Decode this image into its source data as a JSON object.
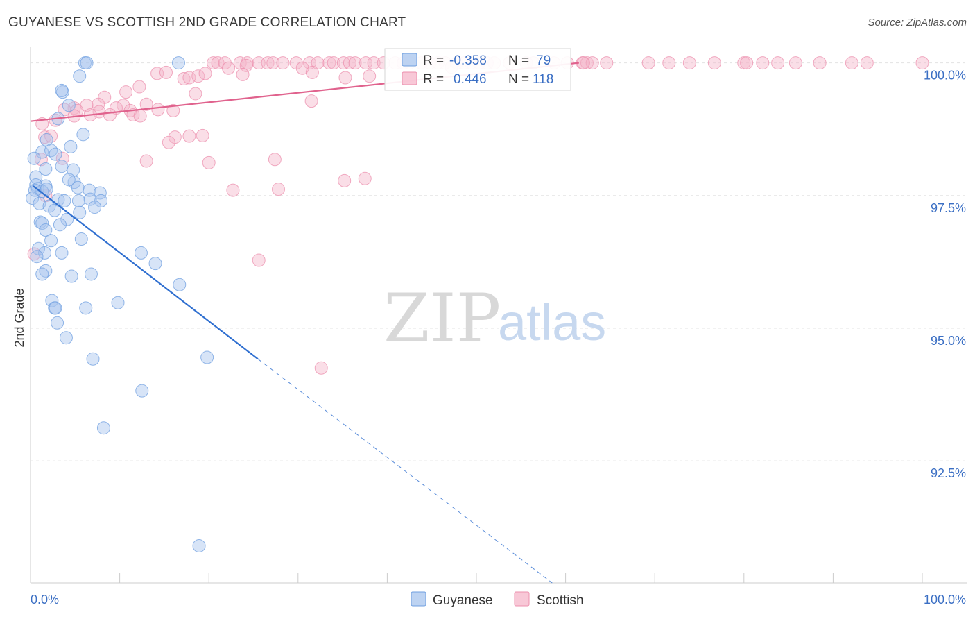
{
  "header": {
    "title": "GUYANESE VS SCOTTISH 2ND GRADE CORRELATION CHART",
    "source": "Source: ZipAtlas.com"
  },
  "watermark": {
    "zip": "ZIP",
    "atlas": "atlas"
  },
  "legend_box": {
    "rows": [
      {
        "r_label": "R =",
        "r_value": "-0.358",
        "n_label": "N =",
        "n_value": "79",
        "color": "#a7c4ee"
      },
      {
        "r_label": "R =",
        "r_value": "0.446",
        "n_label": "N =",
        "n_value": "118",
        "color": "#f5b6c9"
      }
    ]
  },
  "bottom_legend": [
    {
      "label": "Guyanese",
      "color": "#a7c4ee"
    },
    {
      "label": "Scottish",
      "color": "#f5b6c9"
    }
  ],
  "chart_data": {
    "type": "scatter",
    "title": "GUYANESE VS SCOTTISH 2ND GRADE CORRELATION CHART",
    "xlabel": "",
    "ylabel": "2nd Grade",
    "xlim": [
      0,
      100
    ],
    "ylim": [
      90.2,
      100.4
    ],
    "x_tick_labels": [
      "0.0%",
      "100.0%"
    ],
    "y_ticks": [
      {
        "value": 100.0,
        "label": "100.0%"
      },
      {
        "value": 97.5,
        "label": "97.5%"
      },
      {
        "value": 95.0,
        "label": "95.0%"
      },
      {
        "value": 92.5,
        "label": "92.5%"
      }
    ],
    "grid": true,
    "series": [
      {
        "name": "Guyanese",
        "color": "#6f9fe0",
        "fill": "#a7c4ee",
        "trend": {
          "x0": 0.3,
          "y0": 97.68,
          "x1": 25.5,
          "y1": 94.42,
          "dash_to_x": 58.5,
          "dash_to_y": 90.2,
          "color": "#2f6fd0"
        },
        "points": [
          [
            6.1,
            100.0
          ],
          [
            6.3,
            100.0
          ],
          [
            16.6,
            100.0
          ],
          [
            5.5,
            99.75
          ],
          [
            3.6,
            99.45
          ],
          [
            3.5,
            99.48
          ],
          [
            4.3,
            99.2
          ],
          [
            3.1,
            98.95
          ],
          [
            5.9,
            98.65
          ],
          [
            1.8,
            98.55
          ],
          [
            4.5,
            98.42
          ],
          [
            1.3,
            98.32
          ],
          [
            2.3,
            98.35
          ],
          [
            2.8,
            98.28
          ],
          [
            0.4,
            98.2
          ],
          [
            3.5,
            98.05
          ],
          [
            1.7,
            98.0
          ],
          [
            4.8,
            97.98
          ],
          [
            0.6,
            97.85
          ],
          [
            4.9,
            97.75
          ],
          [
            4.3,
            97.8
          ],
          [
            1.7,
            97.68
          ],
          [
            0.6,
            97.7
          ],
          [
            0.8,
            97.63
          ],
          [
            1.3,
            97.58
          ],
          [
            0.5,
            97.6
          ],
          [
            1.8,
            97.62
          ],
          [
            6.6,
            97.6
          ],
          [
            5.3,
            97.65
          ],
          [
            7.8,
            97.55
          ],
          [
            0.2,
            97.45
          ],
          [
            3.1,
            97.42
          ],
          [
            3.8,
            97.4
          ],
          [
            5.4,
            97.4
          ],
          [
            6.7,
            97.43
          ],
          [
            7.9,
            97.4
          ],
          [
            1.0,
            97.35
          ],
          [
            2.1,
            97.3
          ],
          [
            7.2,
            97.28
          ],
          [
            2.7,
            97.22
          ],
          [
            5.5,
            97.18
          ],
          [
            4.1,
            97.05
          ],
          [
            1.1,
            97.0
          ],
          [
            1.3,
            96.98
          ],
          [
            3.3,
            96.95
          ],
          [
            1.7,
            96.85
          ],
          [
            5.7,
            96.68
          ],
          [
            2.3,
            96.65
          ],
          [
            0.9,
            96.5
          ],
          [
            1.6,
            96.42
          ],
          [
            3.5,
            96.42
          ],
          [
            12.4,
            96.42
          ],
          [
            0.7,
            96.35
          ],
          [
            14.0,
            96.22
          ],
          [
            1.7,
            96.08
          ],
          [
            1.3,
            96.02
          ],
          [
            6.8,
            96.02
          ],
          [
            4.6,
            95.98
          ],
          [
            16.7,
            95.82
          ],
          [
            2.4,
            95.52
          ],
          [
            9.8,
            95.48
          ],
          [
            2.7,
            95.38
          ],
          [
            2.8,
            95.38
          ],
          [
            6.2,
            95.38
          ],
          [
            3.0,
            95.1
          ],
          [
            4.0,
            94.82
          ],
          [
            19.8,
            94.45
          ],
          [
            7.0,
            94.42
          ],
          [
            12.5,
            93.82
          ],
          [
            8.2,
            93.12
          ],
          [
            18.9,
            90.9
          ]
        ]
      },
      {
        "name": "Scottish",
        "color": "#ec8fae",
        "fill": "#f5b6c9",
        "trend": {
          "x0": 0.0,
          "y0": 98.9,
          "x1": 61.5,
          "y1": 100.0,
          "color": "#e0628d"
        },
        "points": [
          [
            20.5,
            100.0
          ],
          [
            21.0,
            100.0
          ],
          [
            21.8,
            100.0
          ],
          [
            23.5,
            100.0
          ],
          [
            24.3,
            100.0
          ],
          [
            25.6,
            100.0
          ],
          [
            26.6,
            100.0
          ],
          [
            27.2,
            100.0
          ],
          [
            28.3,
            100.0
          ],
          [
            29.8,
            100.0
          ],
          [
            31.3,
            100.0
          ],
          [
            32.2,
            100.0
          ],
          [
            33.5,
            100.0
          ],
          [
            34.0,
            100.0
          ],
          [
            35.1,
            100.0
          ],
          [
            35.8,
            100.0
          ],
          [
            36.4,
            100.0
          ],
          [
            37.6,
            100.0
          ],
          [
            38.5,
            100.0
          ],
          [
            39.6,
            100.0
          ],
          [
            40.9,
            100.0
          ],
          [
            41.8,
            100.0
          ],
          [
            42.5,
            100.0
          ],
          [
            43.8,
            100.0
          ],
          [
            44.8,
            100.0
          ],
          [
            45.7,
            100.0
          ],
          [
            46.5,
            100.0
          ],
          [
            47.8,
            100.0
          ],
          [
            48.6,
            100.0
          ],
          [
            49.4,
            100.0
          ],
          [
            50.3,
            100.0
          ],
          [
            51.2,
            100.0
          ],
          [
            52.0,
            100.0
          ],
          [
            53.7,
            100.0
          ],
          [
            55.6,
            100.0
          ],
          [
            56.4,
            100.0
          ],
          [
            58.7,
            100.0
          ],
          [
            60.2,
            100.0
          ],
          [
            61.9,
            100.0
          ],
          [
            62.4,
            100.0
          ],
          [
            63.0,
            100.0
          ],
          [
            64.6,
            100.0
          ],
          [
            69.3,
            100.0
          ],
          [
            71.6,
            100.0
          ],
          [
            73.9,
            100.0
          ],
          [
            76.7,
            100.0
          ],
          [
            80.0,
            100.0
          ],
          [
            80.3,
            100.0
          ],
          [
            82.1,
            100.0
          ],
          [
            83.8,
            100.0
          ],
          [
            85.8,
            100.0
          ],
          [
            88.5,
            100.0
          ],
          [
            92.1,
            100.0
          ],
          [
            93.8,
            100.0
          ],
          [
            100.0,
            100.0
          ],
          [
            22.2,
            99.9
          ],
          [
            24.2,
            99.95
          ],
          [
            30.5,
            99.9
          ],
          [
            47.2,
            99.92
          ],
          [
            14.2,
            99.8
          ],
          [
            15.2,
            99.82
          ],
          [
            17.2,
            99.7
          ],
          [
            17.8,
            99.72
          ],
          [
            18.8,
            99.75
          ],
          [
            19.6,
            99.8
          ],
          [
            23.8,
            99.78
          ],
          [
            31.6,
            99.82
          ],
          [
            35.3,
            99.72
          ],
          [
            12.2,
            99.55
          ],
          [
            10.7,
            99.45
          ],
          [
            18.5,
            99.42
          ],
          [
            8.3,
            99.35
          ],
          [
            7.6,
            99.22
          ],
          [
            6.3,
            99.2
          ],
          [
            10.4,
            99.2
          ],
          [
            13.0,
            99.22
          ],
          [
            4.9,
            99.15
          ],
          [
            9.6,
            99.15
          ],
          [
            3.8,
            99.12
          ],
          [
            5.2,
            99.1
          ],
          [
            7.7,
            99.08
          ],
          [
            11.2,
            99.1
          ],
          [
            14.3,
            99.12
          ],
          [
            16.0,
            99.1
          ],
          [
            4.9,
            99.0
          ],
          [
            6.7,
            99.02
          ],
          [
            11.5,
            99.02
          ],
          [
            12.3,
            99.0
          ],
          [
            2.8,
            98.92
          ],
          [
            1.3,
            98.85
          ],
          [
            8.9,
            99.02
          ],
          [
            1.6,
            98.6
          ],
          [
            16.2,
            98.6
          ],
          [
            15.5,
            98.5
          ],
          [
            17.8,
            98.62
          ],
          [
            19.3,
            98.63
          ],
          [
            1.2,
            98.18
          ],
          [
            13.0,
            98.15
          ],
          [
            20.0,
            98.12
          ],
          [
            27.4,
            98.18
          ],
          [
            31.5,
            99.28
          ],
          [
            3.6,
            98.2
          ],
          [
            35.2,
            97.78
          ],
          [
            37.5,
            97.82
          ],
          [
            22.7,
            97.6
          ],
          [
            27.8,
            97.62
          ],
          [
            1.7,
            97.5
          ],
          [
            0.4,
            96.4
          ],
          [
            25.6,
            96.28
          ],
          [
            32.6,
            94.25
          ],
          [
            38.0,
            99.75
          ],
          [
            62.0,
            100.0
          ],
          [
            2.3,
            98.62
          ]
        ]
      }
    ]
  }
}
